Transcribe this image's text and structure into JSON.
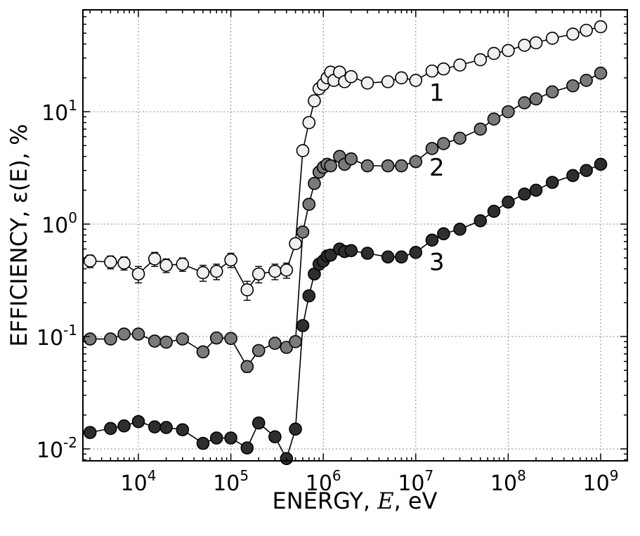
{
  "chart_data": {
    "type": "line",
    "title": "",
    "xlabel": "ENERGY,  E,  eV",
    "ylabel": "EFFICIENCY,  ε(E),  %",
    "xscale": "log",
    "yscale": "log",
    "xlim": [
      2500,
      2000000000
    ],
    "ylim": [
      0.008,
      80
    ],
    "grid": true,
    "xticks": [
      {
        "value": 10000,
        "base": "10",
        "exp": "4"
      },
      {
        "value": 100000,
        "base": "10",
        "exp": "5"
      },
      {
        "value": 1000000,
        "base": "10",
        "exp": "6"
      },
      {
        "value": 10000000,
        "base": "10",
        "exp": "7"
      },
      {
        "value": 100000000,
        "base": "10",
        "exp": "8"
      },
      {
        "value": 1000000000,
        "base": "10",
        "exp": "9"
      }
    ],
    "yticks": [
      {
        "value": 0.01,
        "base": "10",
        "exp": "-2"
      },
      {
        "value": 0.1,
        "base": "10",
        "exp": "-1"
      },
      {
        "value": 1,
        "base": "10",
        "exp": "0"
      },
      {
        "value": 10,
        "base": "10",
        "exp": "1"
      }
    ],
    "series": [
      {
        "name": "1",
        "color": "#f0f0f0",
        "x": [
          3000,
          5000,
          7000,
          10000,
          15000,
          20000,
          30000,
          50000,
          70000,
          100000,
          150000,
          200000,
          300000,
          400000,
          500000,
          600000,
          700000,
          800000,
          900000,
          1000000,
          1100000,
          1200000,
          1300000,
          1500000,
          1700000,
          2000000,
          3000000,
          5000000,
          7000000,
          10000000,
          15000000,
          20000000,
          30000000,
          50000000,
          70000000,
          100000000,
          150000000,
          200000000,
          300000000,
          500000000,
          700000000,
          1000000000
        ],
        "y": [
          0.47,
          0.46,
          0.45,
          0.36,
          0.49,
          0.43,
          0.44,
          0.37,
          0.38,
          0.48,
          0.26,
          0.36,
          0.38,
          0.39,
          0.67,
          4.5,
          8.0,
          12.5,
          16,
          17.5,
          20,
          22.5,
          19,
          22.5,
          18.5,
          20.5,
          18,
          18.5,
          20,
          19,
          23,
          24,
          26,
          29,
          33,
          35,
          39,
          41,
          45,
          49,
          53,
          57
        ],
        "err": [
          0.06,
          0.06,
          0.06,
          0.06,
          0.07,
          0.06,
          0.06,
          0.06,
          0.06,
          0.07,
          0.05,
          0.06,
          0.06,
          0.06,
          0,
          0,
          0,
          0,
          0,
          0,
          0,
          0,
          0,
          0,
          0,
          0,
          0,
          0,
          0,
          0,
          0,
          0,
          0,
          0,
          0,
          0,
          0,
          0,
          0,
          0,
          0,
          0
        ]
      },
      {
        "name": "2",
        "color": "#7a7a7a",
        "x": [
          3000,
          5000,
          7000,
          10000,
          15000,
          20000,
          30000,
          50000,
          70000,
          100000,
          150000,
          200000,
          300000,
          400000,
          500000,
          600000,
          700000,
          800000,
          900000,
          1000000,
          1100000,
          1200000,
          1500000,
          1700000,
          2000000,
          3000000,
          5000000,
          7000000,
          10000000,
          15000000,
          20000000,
          30000000,
          50000000,
          70000000,
          100000000,
          150000000,
          200000000,
          300000000,
          500000000,
          700000000,
          1000000000
        ],
        "y": [
          0.095,
          0.095,
          0.105,
          0.105,
          0.091,
          0.089,
          0.095,
          0.073,
          0.097,
          0.096,
          0.054,
          0.075,
          0.087,
          0.08,
          0.09,
          0.85,
          1.5,
          2.3,
          2.9,
          3.2,
          3.4,
          3.3,
          4.0,
          3.4,
          3.8,
          3.3,
          3.3,
          3.3,
          3.6,
          4.7,
          5.2,
          5.8,
          7.0,
          8.6,
          10.0,
          12,
          13,
          15,
          17,
          19,
          22
        ],
        "err": [
          0.007,
          0.007,
          0.008,
          0.008,
          0.007,
          0.007,
          0.007,
          0.007,
          0.007,
          0.007,
          0.006,
          0.006,
          0.007,
          0.007,
          0,
          0,
          0,
          0,
          0,
          0,
          0,
          0,
          0,
          0,
          0,
          0,
          0,
          0,
          0,
          0,
          0,
          0,
          0,
          0,
          0,
          0,
          0,
          0,
          0,
          0,
          0
        ]
      },
      {
        "name": "3",
        "color": "#2e2e2e",
        "x": [
          3000,
          5000,
          7000,
          10000,
          15000,
          20000,
          30000,
          50000,
          70000,
          100000,
          150000,
          200000,
          300000,
          400000,
          500000,
          600000,
          700000,
          800000,
          900000,
          1000000,
          1100000,
          1200000,
          1500000,
          1700000,
          2000000,
          3000000,
          5000000,
          7000000,
          10000000,
          15000000,
          20000000,
          30000000,
          50000000,
          70000000,
          100000000,
          150000000,
          200000000,
          300000000,
          500000000,
          700000000,
          1000000000
        ],
        "y": [
          0.014,
          0.0152,
          0.016,
          0.0175,
          0.0157,
          0.0155,
          0.0148,
          0.0112,
          0.0125,
          0.0125,
          0.0102,
          0.017,
          0.0128,
          0.0082,
          0.015,
          0.125,
          0.23,
          0.36,
          0.44,
          0.47,
          0.52,
          0.53,
          0.6,
          0.57,
          0.58,
          0.55,
          0.51,
          0.51,
          0.56,
          0.72,
          0.82,
          0.9,
          1.07,
          1.3,
          1.57,
          1.85,
          2.0,
          2.35,
          2.7,
          3.0,
          3.4
        ],
        "err": [
          0.0012,
          0.0012,
          0.0012,
          0.0012,
          0.0012,
          0.0012,
          0.0012,
          0.0011,
          0.0011,
          0.0011,
          0.001,
          0.0012,
          0.0011,
          0,
          0,
          0,
          0,
          0,
          0,
          0,
          0,
          0,
          0,
          0,
          0,
          0,
          0,
          0,
          0,
          0,
          0,
          0,
          0,
          0,
          0,
          0,
          0,
          0,
          0,
          0,
          0
        ]
      }
    ],
    "annotations": [
      {
        "text": "1",
        "x": 14000000,
        "y": 12.5
      },
      {
        "text": "2",
        "x": 14000000,
        "y": 2.7
      },
      {
        "text": "3",
        "x": 14000000,
        "y": 0.39
      }
    ]
  }
}
